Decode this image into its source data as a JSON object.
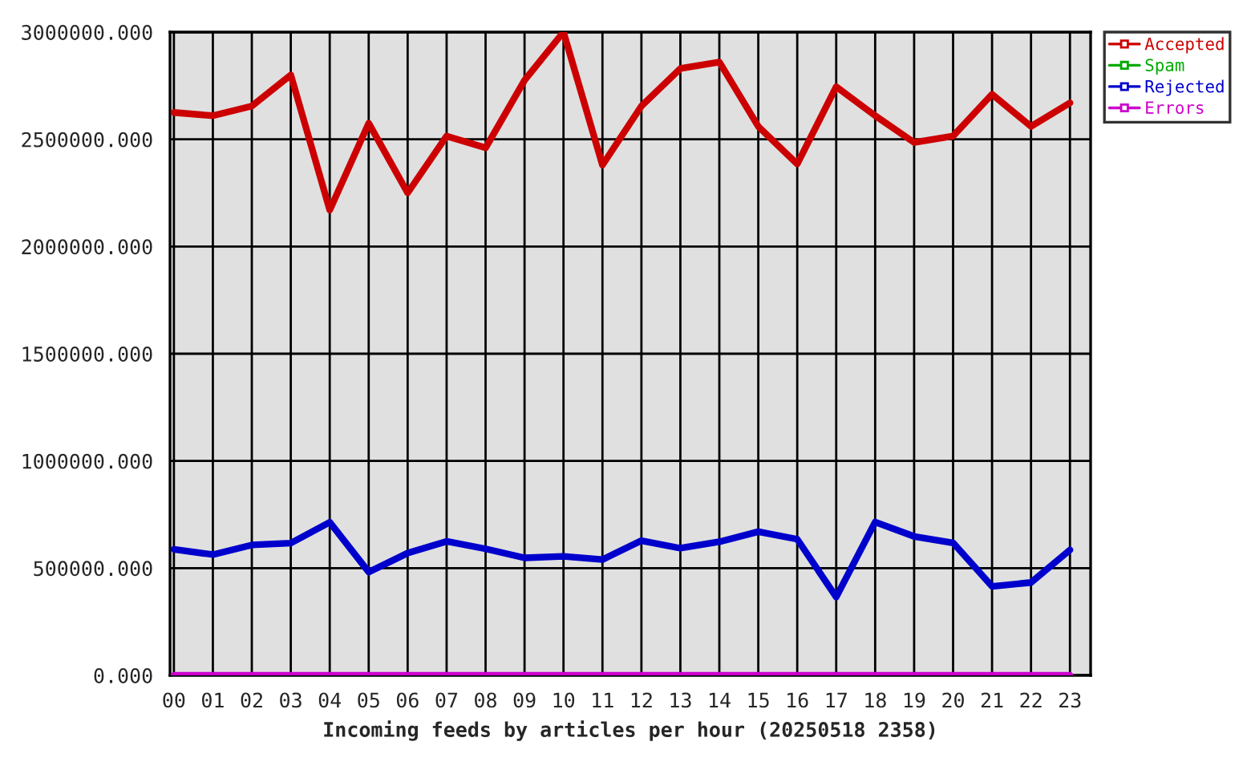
{
  "chart_data": {
    "type": "line",
    "xlabel": "Incoming feeds by articles per hour (20250518 2358)",
    "categories": [
      "00",
      "01",
      "02",
      "03",
      "04",
      "05",
      "06",
      "07",
      "08",
      "09",
      "10",
      "11",
      "12",
      "13",
      "14",
      "15",
      "16",
      "17",
      "18",
      "19",
      "20",
      "21",
      "22",
      "23"
    ],
    "series": [
      {
        "name": "Accepted",
        "color": "#cc0000",
        "values": [
          2625000,
          2610000,
          2655000,
          2800000,
          2170000,
          2575000,
          2250000,
          2515000,
          2460000,
          2775000,
          3000000,
          2380000,
          2655000,
          2830000,
          2860000,
          2560000,
          2385000,
          2745000,
          2610000,
          2485000,
          2515000,
          2710000,
          2560000,
          2670000
        ]
      },
      {
        "name": "Spam",
        "color": "#00aa00",
        "values": [
          null,
          null,
          null,
          null,
          null,
          null,
          null,
          null,
          null,
          null,
          null,
          null,
          null,
          null,
          null,
          null,
          null,
          null,
          null,
          null,
          null,
          null,
          null,
          null
        ]
      },
      {
        "name": "Rejected",
        "color": "#0000cc",
        "values": [
          588000,
          563000,
          608000,
          617000,
          714000,
          482000,
          570000,
          625000,
          590000,
          548000,
          555000,
          540000,
          628000,
          593000,
          623000,
          670000,
          635000,
          365000,
          715000,
          648000,
          618000,
          415000,
          433000,
          585000
        ]
      },
      {
        "name": "Errors",
        "color": "#cc00cc",
        "values": [
          0,
          0,
          0,
          0,
          0,
          0,
          0,
          0,
          0,
          0,
          0,
          0,
          0,
          0,
          0,
          0,
          0,
          0,
          0,
          0,
          0,
          0,
          0,
          0
        ]
      }
    ],
    "ylim": [
      0,
      3000000
    ],
    "yticks": [
      {
        "value": 0,
        "label": "0.000"
      },
      {
        "value": 500000,
        "label": "500000.000"
      },
      {
        "value": 1000000,
        "label": "1000000.000"
      },
      {
        "value": 1500000,
        "label": "1500000.000"
      },
      {
        "value": 2000000,
        "label": "2000000.000"
      },
      {
        "value": 2500000,
        "label": "2500000.000"
      },
      {
        "value": 3000000,
        "label": "3000000.000"
      }
    ],
    "grid": true,
    "legend": "top right",
    "line_style": "solid"
  }
}
